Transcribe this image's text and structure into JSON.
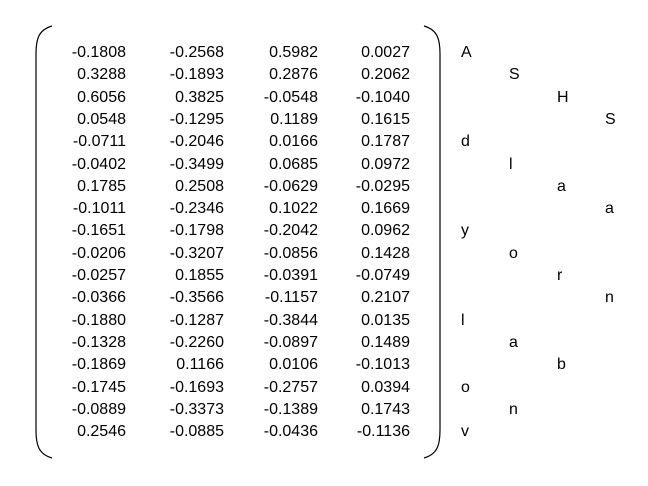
{
  "matrix": {
    "rows": [
      [
        "-0.1808",
        "-0.2568",
        "0.5982",
        "0.0027"
      ],
      [
        "0.3288",
        "-0.1893",
        "0.2876",
        "0.2062"
      ],
      [
        "0.6056",
        "0.3825",
        "-0.0548",
        "-0.1040"
      ],
      [
        "0.0548",
        "-0.1295",
        "0.1189",
        "0.1615"
      ],
      [
        "-0.0711",
        "-0.2046",
        "0.0166",
        "0.1787"
      ],
      [
        "-0.0402",
        "-0.3499",
        "0.0685",
        "0.0972"
      ],
      [
        "0.1785",
        "0.2508",
        "-0.0629",
        "-0.0295"
      ],
      [
        "-0.1011",
        "-0.2346",
        "0.1022",
        "0.1669"
      ],
      [
        "-0.1651",
        "-0.1798",
        "-0.2042",
        "0.0962"
      ],
      [
        "-0.0206",
        "-0.3207",
        "-0.0856",
        "0.1428"
      ],
      [
        "-0.0257",
        "0.1855",
        "-0.0391",
        "-0.0749"
      ],
      [
        "-0.0366",
        "-0.3566",
        "-0.1157",
        "0.2107"
      ],
      [
        "-0.1880",
        "-0.1287",
        "-0.3844",
        "0.0135"
      ],
      [
        "-0.1328",
        "-0.2260",
        "-0.0897",
        "0.1489"
      ],
      [
        "-0.1869",
        "0.1166",
        "0.0106",
        "-0.1013"
      ],
      [
        "-0.1745",
        "-0.1693",
        "-0.2757",
        "0.0394"
      ],
      [
        "-0.0889",
        "-0.3373",
        "-0.1389",
        "0.1743"
      ],
      [
        "0.2546",
        "-0.0885",
        "-0.0436",
        "-0.1136"
      ]
    ]
  },
  "row_labels": [
    {
      "text": "A",
      "col": 0
    },
    {
      "text": "S",
      "col": 1
    },
    {
      "text": "H",
      "col": 2
    },
    {
      "text": "S",
      "col": 3
    },
    {
      "text": "d",
      "col": 0
    },
    {
      "text": "l",
      "col": 1
    },
    {
      "text": "a",
      "col": 2
    },
    {
      "text": "a",
      "col": 3
    },
    {
      "text": "y",
      "col": 0
    },
    {
      "text": "o",
      "col": 1
    },
    {
      "text": "r",
      "col": 2
    },
    {
      "text": "n",
      "col": 3
    },
    {
      "text": "l",
      "col": 0
    },
    {
      "text": "a",
      "col": 1
    },
    {
      "text": "b",
      "col": 2
    },
    {
      "text": "o",
      "col": 0
    },
    {
      "text": "n",
      "col": 1
    },
    {
      "text": "v",
      "col": 0
    }
  ]
}
